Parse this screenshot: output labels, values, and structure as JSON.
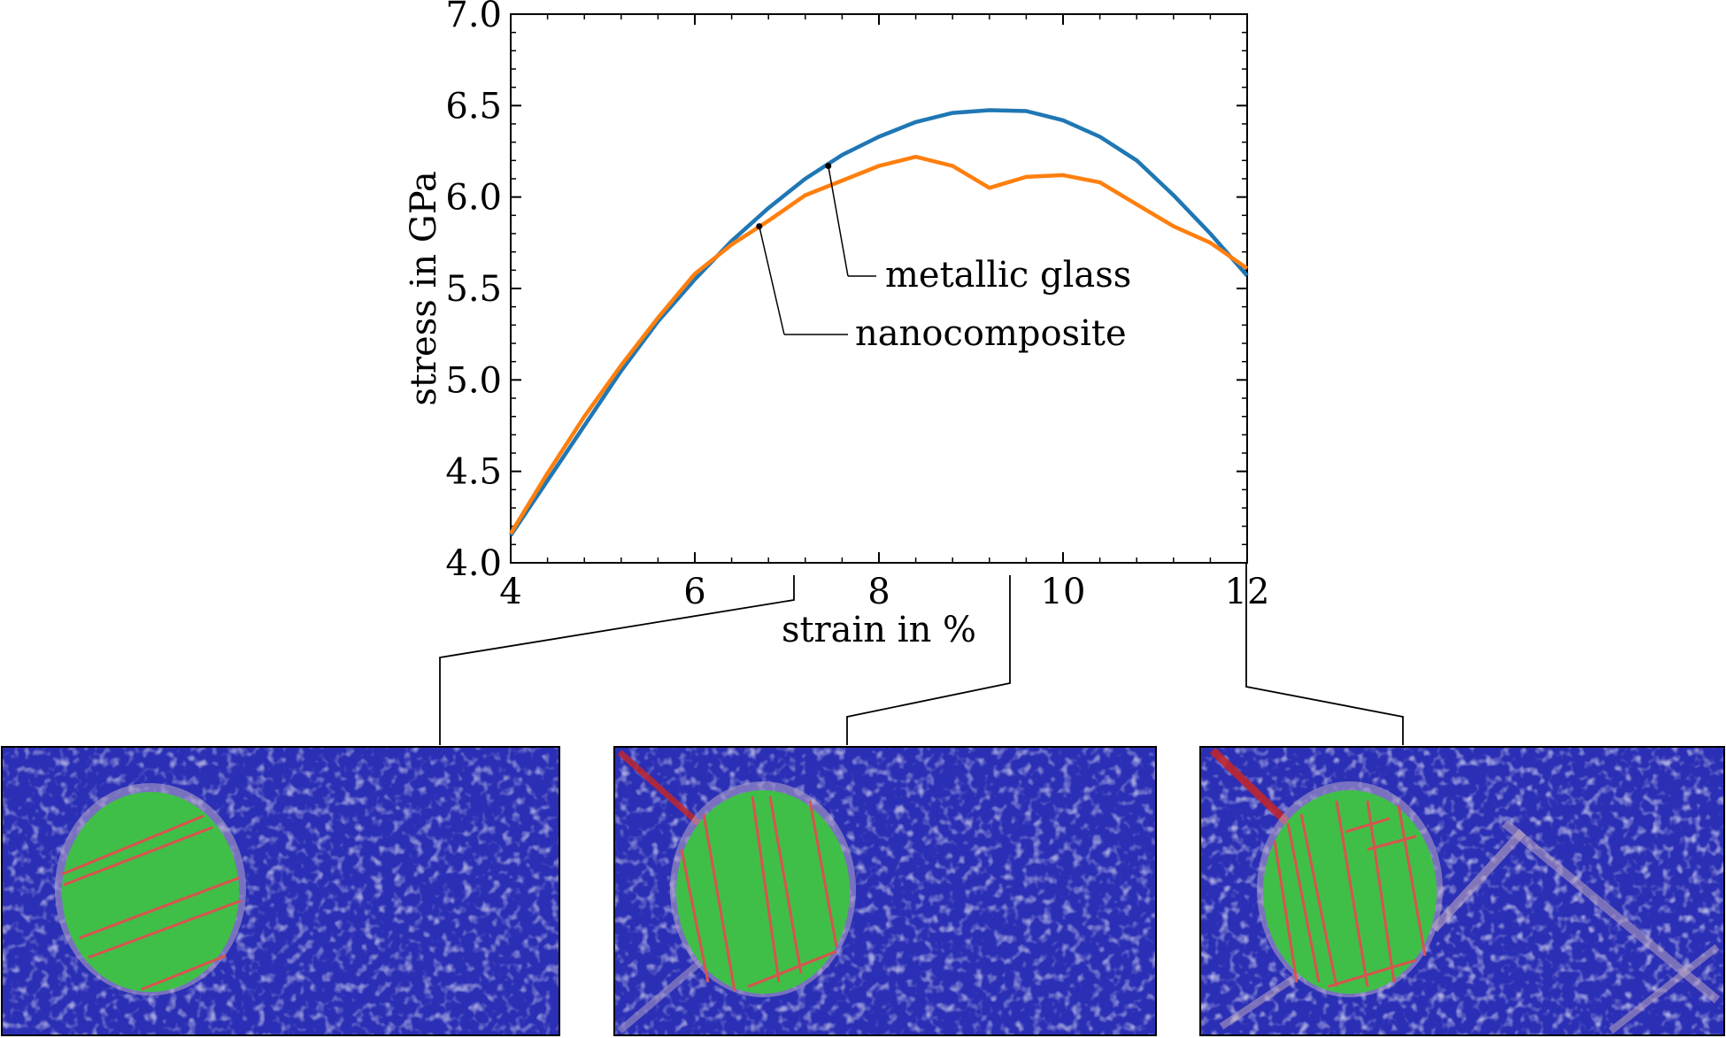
{
  "chart_data": {
    "type": "line",
    "xlabel": "strain in %",
    "ylabel": "stress in GPa",
    "xlim": [
      4,
      12
    ],
    "ylim": [
      4.0,
      7.0
    ],
    "x_ticks": [
      "4",
      "6",
      "8",
      "10",
      "12"
    ],
    "y_ticks": [
      "4.0",
      "4.5",
      "5.0",
      "5.5",
      "6.0",
      "6.5",
      "7.0"
    ],
    "grid": false,
    "series": [
      {
        "name": "metallic glass",
        "color": "#1f77b4",
        "x": [
          4.0,
          4.4,
          4.8,
          5.2,
          5.6,
          6.0,
          6.4,
          6.8,
          7.2,
          7.6,
          8.0,
          8.4,
          8.8,
          9.2,
          9.6,
          10.0,
          10.4,
          10.8,
          11.2,
          11.6,
          12.0
        ],
        "y": [
          4.15,
          4.45,
          4.75,
          5.05,
          5.32,
          5.55,
          5.76,
          5.94,
          6.1,
          6.23,
          6.33,
          6.41,
          6.46,
          6.475,
          6.47,
          6.42,
          6.33,
          6.2,
          6.01,
          5.8,
          5.57
        ]
      },
      {
        "name": "nanocomposite",
        "color": "#ff7f0e",
        "x": [
          4.0,
          4.4,
          4.8,
          5.2,
          5.6,
          6.0,
          6.4,
          6.8,
          7.2,
          7.6,
          8.0,
          8.4,
          8.8,
          9.2,
          9.6,
          10.0,
          10.4,
          10.8,
          11.2,
          11.6,
          12.0
        ],
        "y": [
          4.16,
          4.49,
          4.8,
          5.08,
          5.34,
          5.58,
          5.74,
          5.87,
          6.01,
          6.09,
          6.17,
          6.22,
          6.17,
          6.05,
          6.11,
          6.12,
          6.08,
          5.96,
          5.84,
          5.75,
          5.61
        ]
      }
    ],
    "annotations": [
      {
        "text": "metallic glass",
        "x": 7.45,
        "y": 6.17
      },
      {
        "text": "nanocomposite",
        "x": 6.7,
        "y": 5.84
      }
    ]
  },
  "snapshots": [
    {
      "strain": 7.1,
      "background_color": "#2b2fb5",
      "particle_color": "#3fbf47",
      "band_color": "#d9534f"
    },
    {
      "strain": 9.5,
      "background_color": "#2b2fb5",
      "particle_color": "#3fbf47",
      "band_color": "#d9534f"
    },
    {
      "strain": 12.0,
      "background_color": "#2b2fb5",
      "particle_color": "#3fbf47",
      "band_color": "#d9534f"
    }
  ]
}
